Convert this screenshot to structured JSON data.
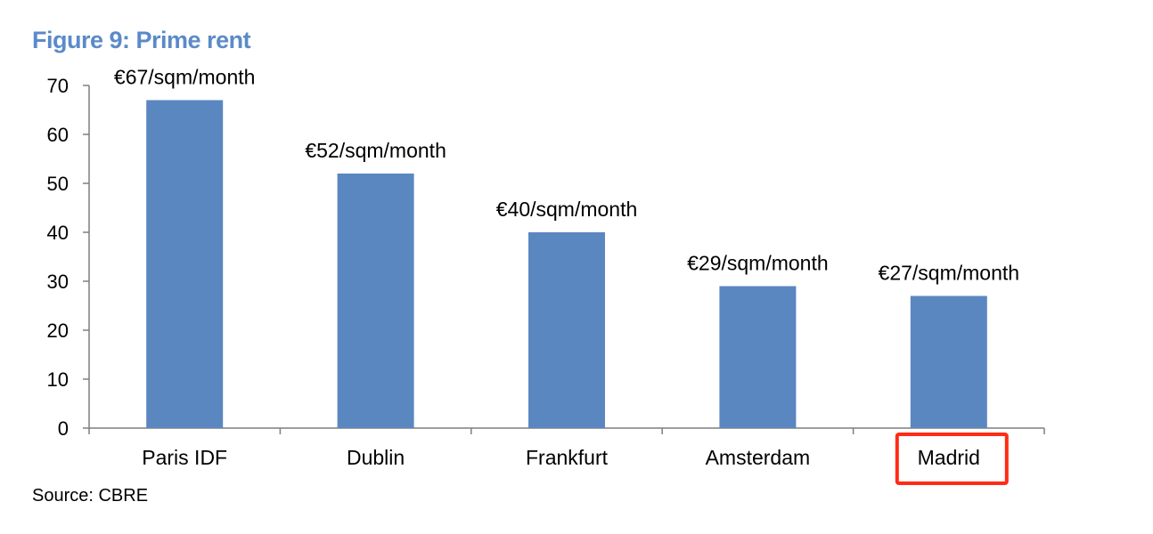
{
  "figure_title": "Figure 9: Prime rent",
  "source_note": "Source: CBRE",
  "highlight": {
    "category": "Madrid",
    "color": "#ff2b14"
  },
  "colors": {
    "bar": "#5b87c1",
    "title": "#5b8ac9",
    "axis": "#7f7f7f"
  },
  "chart_data": {
    "type": "bar",
    "title": "Figure 9: Prime rent",
    "xlabel": "",
    "ylabel": "",
    "categories": [
      "Paris IDF",
      "Dublin",
      "Frankfurt",
      "Amsterdam",
      "Madrid"
    ],
    "values": [
      67,
      52,
      40,
      29,
      27
    ],
    "data_labels": [
      "€67/sqm/month",
      "€52/sqm/month",
      "€40/sqm/month",
      "€29/sqm/month",
      "€27/sqm/month"
    ],
    "ylim": [
      0,
      70
    ],
    "yticks": [
      0,
      10,
      20,
      30,
      40,
      50,
      60,
      70
    ],
    "grid": false,
    "legend": "none"
  }
}
